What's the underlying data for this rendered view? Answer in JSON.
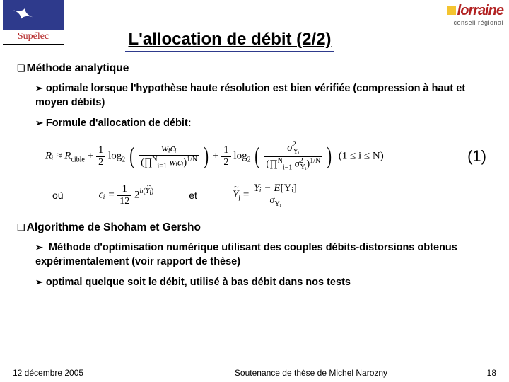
{
  "logos": {
    "left_name": "Supélec",
    "right_name": "lorraine",
    "right_sub": "conseil régional"
  },
  "title": "L'allocation de débit (2/2)",
  "section1": {
    "heading": "Méthode analytique",
    "bullet1": "optimale lorsque l'hypothèse haute résolution est bien vérifiée (compression à haut et moyen débits)",
    "bullet2": "Formule d'allocation de débit:"
  },
  "formula": {
    "lhs": "Rᵢ ≈ R",
    "cible": "cible",
    "plus1": " + ",
    "half1_num": "1",
    "half1_den": "2",
    "log1": " log",
    "log_base": "2",
    "frac2_num": "wᵢcᵢ",
    "frac2_den_prod": "∏",
    "frac2_den_lim_low": "i=1",
    "frac2_den_lim_high": "N",
    "frac2_den_inner": " wᵢcᵢ",
    "exp_1N": "1/N",
    "plus2": " + ",
    "frac4_num_sigma": "σ",
    "frac4_num_sq": "2",
    "frac4_num_sub": "Yᵢ",
    "range": "(1 ≤ i ≤ N)",
    "eq_num": "(1)"
  },
  "defs": {
    "ou": "où",
    "et": "et",
    "c_lhs": "cᵢ = ",
    "c_num": "1",
    "c_den": "12",
    "c_exp_base": " 2",
    "c_exp": "h",
    "c_exp_arg_pre": "(",
    "c_exp_arg": "Ỹᵢ",
    "c_exp_arg_post": ")",
    "y_lhs": "Ỹᵢ = ",
    "y_num_a": "Yᵢ − E",
    "y_num_b": "[Yᵢ]",
    "y_den": "σ",
    "y_den_sub": "Yᵢ"
  },
  "section2": {
    "heading": "Algorithme de Shoham et Gersho",
    "bullet1": " Méthode d'optimisation numérique utilisant des couples débits-distorsions obtenus expérimentalement (voir rapport de thèse)",
    "bullet2": "optimal quelque soit le débit, utilisé à bas débit dans nos tests"
  },
  "footer": {
    "date": "12 décembre 2005",
    "center": "Soutenance de thèse de Michel Narozny",
    "page": "18"
  }
}
